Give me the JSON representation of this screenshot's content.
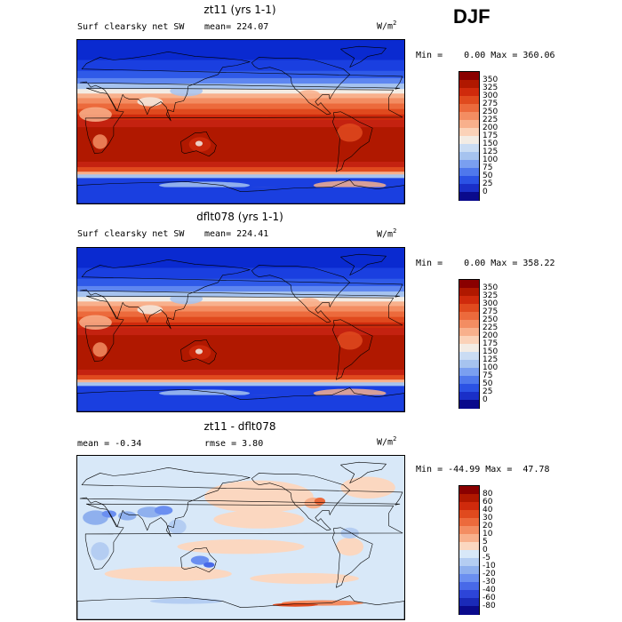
{
  "season": "DJF",
  "panels": [
    {
      "title": "zt11 (yrs 1-1)",
      "left_label": "Surf clearsky net SW",
      "mean_label": "mean= 224.07",
      "units_base": "W/m",
      "units_sup": "2",
      "minmax": "Min =    0.00 Max = 360.06",
      "scheme": "abs",
      "colorbar_labels": [
        "350",
        "325",
        "300",
        "275",
        "250",
        "225",
        "200",
        "175",
        "150",
        "125",
        "100",
        "75",
        "50",
        "25",
        "0"
      ]
    },
    {
      "title": "dflt078 (yrs 1-1)",
      "left_label": "Surf clearsky net SW",
      "mean_label": "mean= 224.41",
      "units_base": "W/m",
      "units_sup": "2",
      "minmax": "Min =    0.00 Max = 358.22",
      "scheme": "abs",
      "colorbar_labels": [
        "350",
        "325",
        "300",
        "275",
        "250",
        "225",
        "200",
        "175",
        "150",
        "125",
        "100",
        "75",
        "50",
        "25",
        "0"
      ]
    },
    {
      "title": "zt11 - dflt078",
      "left_label": "mean =   -0.34",
      "mean_label": "rmse =    3.80",
      "units_base": "W/m",
      "units_sup": "2",
      "minmax": "Min = -44.99 Max =  47.78",
      "scheme": "diff",
      "colorbar_labels": [
        "80",
        "60",
        "40",
        "30",
        "20",
        "10",
        "5",
        "0",
        "-5",
        "-10",
        "-20",
        "-30",
        "-40",
        "-60",
        "-80"
      ]
    }
  ],
  "colors": {
    "abs": [
      "#8a0000",
      "#b01800",
      "#cf2a0c",
      "#e04a1e",
      "#ec6a3c",
      "#f38d62",
      "#f8b08c",
      "#fbd2b8",
      "#f3ece4",
      "#cadcf3",
      "#a6c3ef",
      "#7a9ff0",
      "#4f78ec",
      "#2b52e4",
      "#1a2fc8",
      "#0a0a8c"
    ],
    "diff": [
      "#8a0000",
      "#b01800",
      "#cf2a0c",
      "#e04a1e",
      "#ec6a3c",
      "#f38d62",
      "#f8b08c",
      "#fbd7c0",
      "#d8e8f8",
      "#b4cdf2",
      "#8fb0ee",
      "#6b8ff0",
      "#4869e8",
      "#2d45d8",
      "#1a2ab8",
      "#0a0a8c"
    ]
  }
}
